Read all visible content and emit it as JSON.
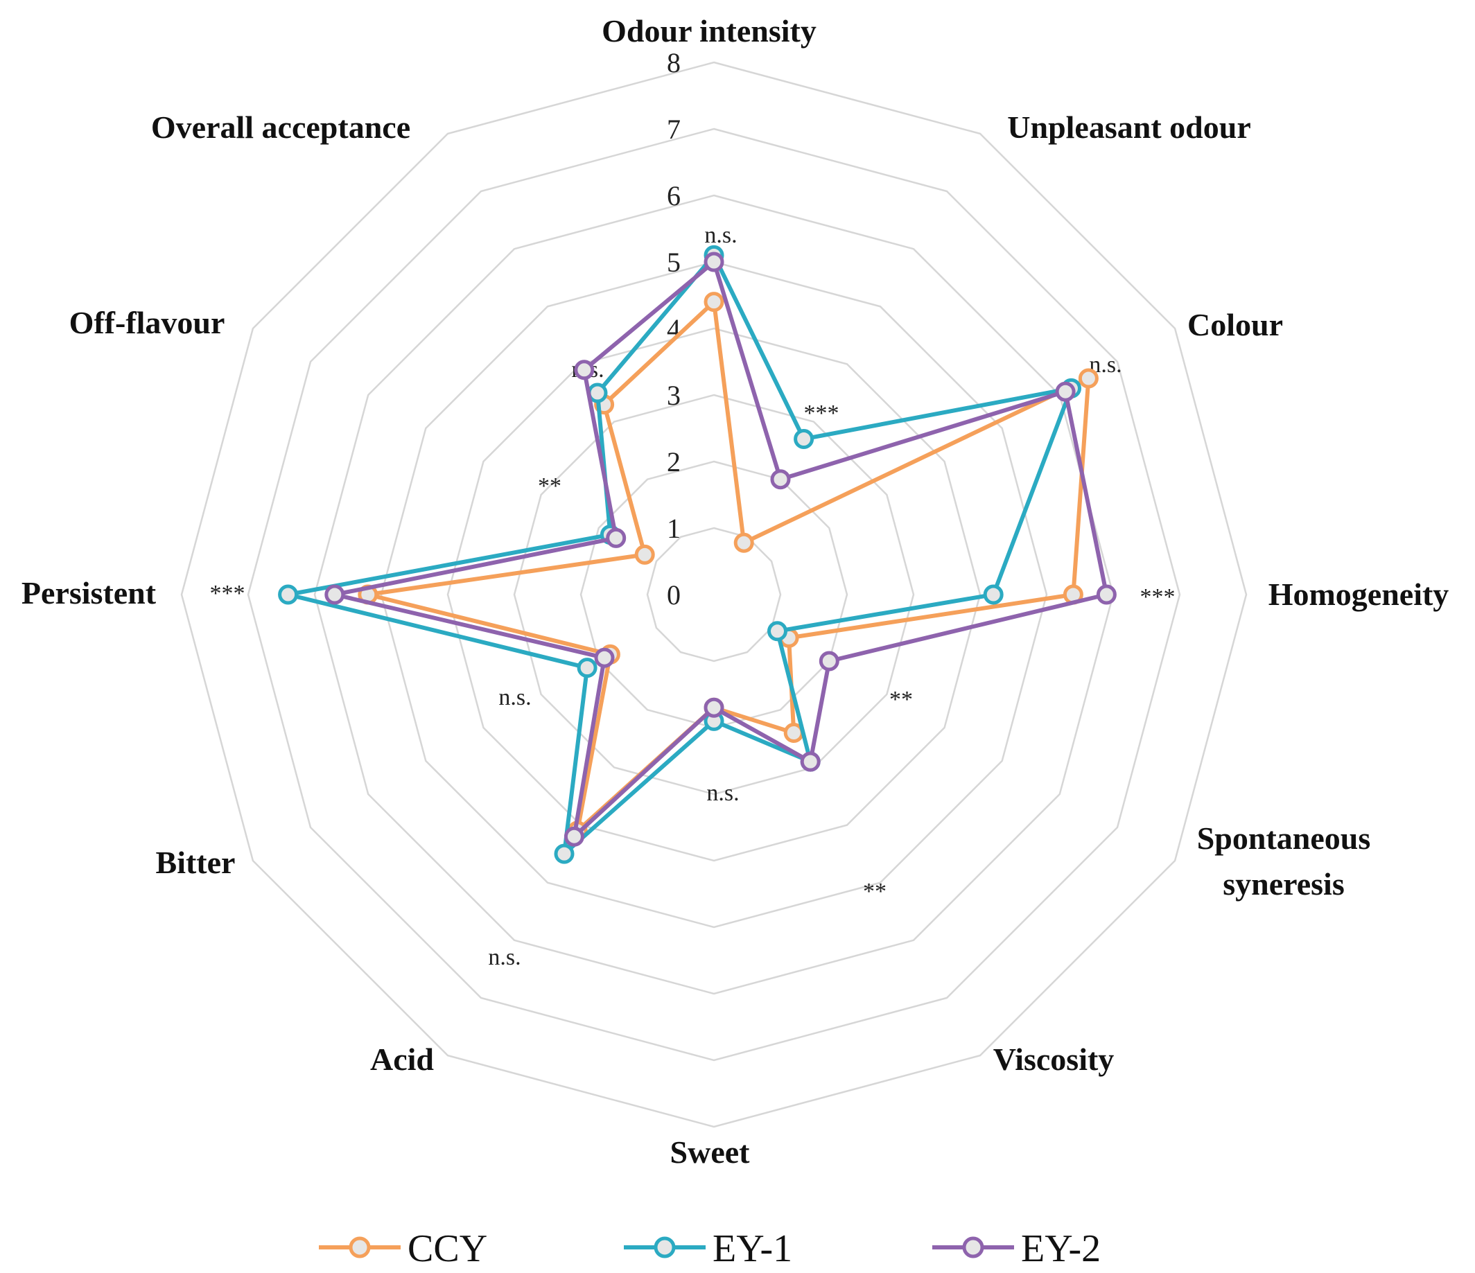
{
  "chart_data": {
    "type": "radar",
    "axes": [
      "Odour intensity",
      "Unpleasant odour",
      "Colour",
      "Homogeneity",
      "Spontaneous syneresis",
      "Viscosity",
      "Sweet",
      "Acid",
      "Bitter",
      "Persistent",
      "Off-flavour",
      "Overall acceptance"
    ],
    "axis_label_lines": [
      [
        "Odour intensity"
      ],
      [
        "Unpleasant odour"
      ],
      [
        "Colour"
      ],
      [
        "Homogeneity"
      ],
      [
        "Spontaneous",
        "syneresis"
      ],
      [
        "Viscosity"
      ],
      [
        "Sweet"
      ],
      [
        "Acid"
      ],
      [
        "Bitter"
      ],
      [
        "Persistent"
      ],
      [
        "Off-flavour"
      ],
      [
        "Overall acceptance"
      ]
    ],
    "r_range": [
      0,
      8
    ],
    "ticks": [
      "0",
      "1",
      "2",
      "3",
      "4",
      "5",
      "6",
      "7",
      "8"
    ],
    "series": [
      {
        "name": "CCY",
        "color": "#F5A05A",
        "values": [
          4.4,
          0.9,
          6.5,
          5.4,
          1.3,
          2.4,
          1.7,
          4.1,
          1.8,
          5.2,
          1.2,
          3.3
        ]
      },
      {
        "name": "EY-1",
        "color": "#2BAAC2",
        "values": [
          5.1,
          2.7,
          6.2,
          4.2,
          1.1,
          2.9,
          1.9,
          4.5,
          2.2,
          6.4,
          1.8,
          3.5
        ]
      },
      {
        "name": "EY-2",
        "color": "#8E63AD",
        "values": [
          5.0,
          2.0,
          6.1,
          5.9,
          2.0,
          2.9,
          1.7,
          4.2,
          1.9,
          5.7,
          1.7,
          3.9
        ]
      }
    ],
    "significance": [
      "n.s.",
      "***",
      "n.s.",
      "***",
      "**",
      "**",
      "n.s.",
      "n.s.",
      "n.s.",
      "***",
      "**",
      "n.s."
    ],
    "legend_position": "bottom"
  }
}
